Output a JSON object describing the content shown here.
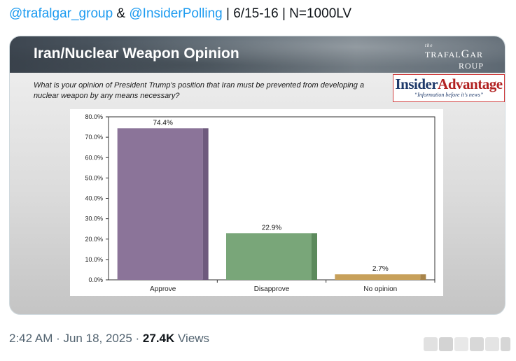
{
  "tweet": {
    "mention1": "@trafalgar_group",
    "amp": " & ",
    "mention2": "@InsiderPolling",
    "rest": " | 6/15-16 | N=1000LV"
  },
  "card": {
    "title": "Iran/Nuclear Weapon Opinion",
    "trafalgar_logo": {
      "the": "the",
      "pre": "TRAFAL",
      "g": "G",
      "post": "AR",
      "line2pre": "",
      "line2": "ROUP"
    },
    "question": "What is your opinion of President Trump's position that Iran must be prevented from developing a nuclear weapon by any means necessary?",
    "ia_logo": {
      "insider": "Insider",
      "advantage": "Advantage",
      "tagline": "“Information before it's news”"
    }
  },
  "chart_data": {
    "type": "bar",
    "categories": [
      "Approve",
      "Disapprove",
      "No opinion"
    ],
    "values": [
      74.4,
      22.9,
      2.7
    ],
    "value_labels": [
      "74.4%",
      "22.9%",
      "2.7%"
    ],
    "colors": [
      "#8b7499",
      "#79a679",
      "#c7a05a"
    ],
    "shade_colors": [
      "#6e5a7d",
      "#5c8a5c",
      "#a8844a"
    ],
    "ylim": [
      0,
      80
    ],
    "yticks": [
      "0.0%",
      "10.0%",
      "20.0%",
      "30.0%",
      "40.0%",
      "50.0%",
      "60.0%",
      "70.0%",
      "80.0%"
    ],
    "ytick_values": [
      0,
      10,
      20,
      30,
      40,
      50,
      60,
      70,
      80
    ],
    "title": "",
    "xlabel": "",
    "ylabel": "",
    "grid": false
  },
  "meta": {
    "time": "2:42 AM · Jun 18, 2025 · ",
    "views_count": "27.4K",
    "views_label": " Views"
  }
}
